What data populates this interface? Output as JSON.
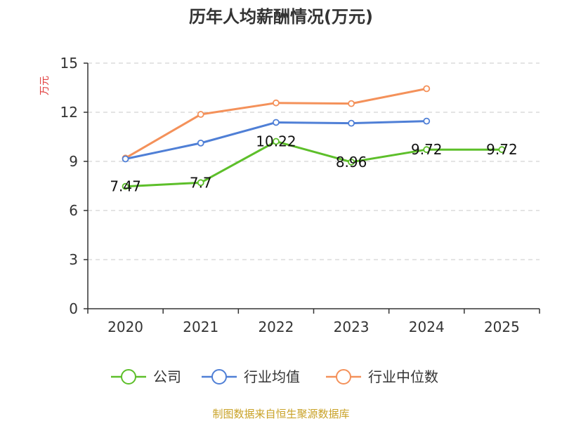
{
  "chart_data": {
    "type": "line",
    "title": "历年人均薪酬情况(万元)",
    "ylabel": "万元",
    "xlabel": "",
    "categories": [
      "2020",
      "2021",
      "2022",
      "2023",
      "2024",
      "2025"
    ],
    "ylim": [
      0,
      15
    ],
    "yticks": [
      0,
      3,
      6,
      9,
      12,
      15
    ],
    "grid": true,
    "legend_position": "bottom",
    "series": [
      {
        "name": "公司",
        "color": "#5dbf2a",
        "values": [
          7.47,
          7.7,
          10.22,
          8.96,
          9.72,
          9.72
        ],
        "labels": [
          "7.47",
          "7.7",
          "10.22",
          "8.96",
          "9.72",
          "9.72"
        ]
      },
      {
        "name": "行业均值",
        "color": "#4f7fd6",
        "values": [
          9.15,
          10.12,
          11.38,
          11.33,
          11.46,
          null
        ]
      },
      {
        "name": "行业中位数",
        "color": "#f4915a",
        "values": [
          9.2,
          11.87,
          12.57,
          12.53,
          13.44,
          null
        ]
      }
    ],
    "source": "制图数据来自恒生聚源数据库"
  }
}
